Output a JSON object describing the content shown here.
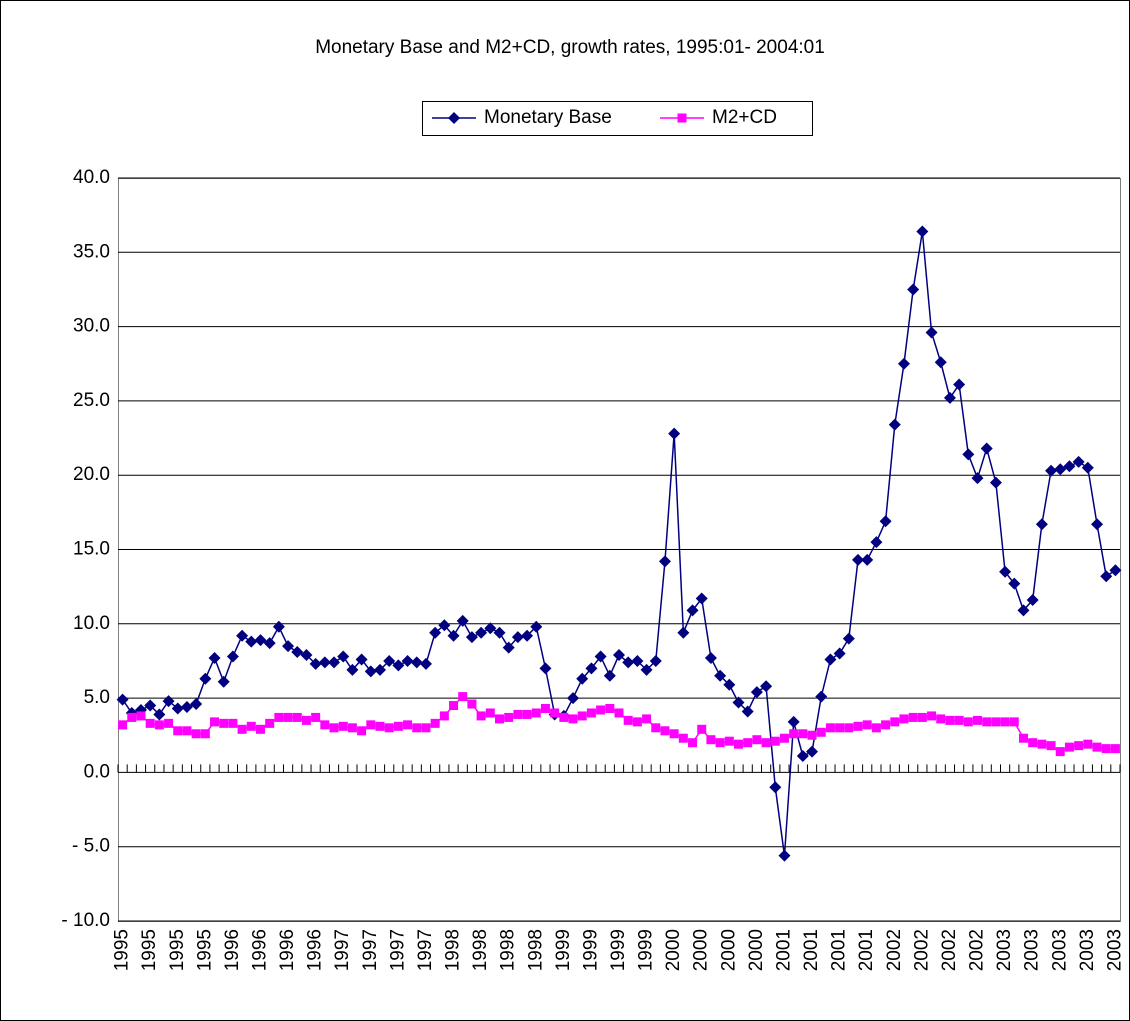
{
  "chart_data": {
    "type": "line",
    "title": "Monetary Base and M2+CD, growth rates, 1995:01- 2004:01",
    "categories": [
      "1995",
      null,
      null,
      "1995",
      null,
      null,
      "1995",
      null,
      null,
      "1995",
      null,
      null,
      "1996",
      null,
      null,
      "1996",
      null,
      null,
      "1996",
      null,
      null,
      "1996",
      null,
      null,
      "1997",
      null,
      null,
      "1997",
      null,
      null,
      "1997",
      null,
      null,
      "1997",
      null,
      null,
      "1998",
      null,
      null,
      "1998",
      null,
      null,
      "1998",
      null,
      null,
      "1998",
      null,
      null,
      "1999",
      null,
      null,
      "1999",
      null,
      null,
      "1999",
      null,
      null,
      "1999",
      null,
      null,
      "2000",
      null,
      null,
      "2000",
      null,
      null,
      "2000",
      null,
      null,
      "2000",
      null,
      null,
      "2001",
      null,
      null,
      "2001",
      null,
      null,
      "2001",
      null,
      null,
      "2001",
      null,
      null,
      "2002",
      null,
      null,
      "2002",
      null,
      null,
      "2002",
      null,
      null,
      "2002",
      null,
      null,
      "2003",
      null,
      null,
      "2003",
      null,
      null,
      "2003",
      null,
      null,
      "2003",
      null,
      null,
      "2003"
    ],
    "series": [
      {
        "name": "Monetary Base",
        "color": "#000080",
        "marker": "diamond",
        "values": [
          4.9,
          4.0,
          4.2,
          4.5,
          3.9,
          4.8,
          4.3,
          4.4,
          4.6,
          6.3,
          7.7,
          6.1,
          7.8,
          9.2,
          8.8,
          8.9,
          8.7,
          9.8,
          8.5,
          8.1,
          7.9,
          7.3,
          7.4,
          7.4,
          7.8,
          6.9,
          7.6,
          6.8,
          6.9,
          7.5,
          7.2,
          7.5,
          7.4,
          7.3,
          9.4,
          9.9,
          9.2,
          10.2,
          9.1,
          9.4,
          9.7,
          9.4,
          8.4,
          9.1,
          9.2,
          9.8,
          7.0,
          3.9,
          3.8,
          5.0,
          6.3,
          7.0,
          7.8,
          6.5,
          7.9,
          7.4,
          7.5,
          6.9,
          7.5,
          14.2,
          22.8,
          9.4,
          10.9,
          11.7,
          7.7,
          6.5,
          5.9,
          4.7,
          4.1,
          5.4,
          5.8,
          -1.0,
          -5.6,
          3.4,
          1.1,
          1.4,
          5.1,
          7.6,
          8.0,
          9.0,
          14.3,
          14.3,
          15.5,
          16.9,
          23.4,
          27.5,
          32.5,
          36.4,
          29.6,
          27.6,
          25.2,
          26.1,
          21.4,
          19.8,
          21.8,
          19.5,
          13.5,
          12.7,
          10.9,
          11.6,
          16.7,
          20.3,
          20.4,
          20.6,
          20.9,
          20.5,
          16.7,
          13.2,
          13.6
        ]
      },
      {
        "name": "M2+CD",
        "color": "#ff00ff",
        "marker": "square",
        "values": [
          3.2,
          3.7,
          3.8,
          3.3,
          3.2,
          3.3,
          2.8,
          2.8,
          2.6,
          2.6,
          3.4,
          3.3,
          3.3,
          2.9,
          3.1,
          2.9,
          3.3,
          3.7,
          3.7,
          3.7,
          3.5,
          3.7,
          3.2,
          3.0,
          3.1,
          3.0,
          2.8,
          3.2,
          3.1,
          3.0,
          3.1,
          3.2,
          3.0,
          3.0,
          3.3,
          3.8,
          4.5,
          5.1,
          4.6,
          3.8,
          4.0,
          3.6,
          3.7,
          3.9,
          3.9,
          4.0,
          4.3,
          4.0,
          3.7,
          3.6,
          3.8,
          4.0,
          4.2,
          4.3,
          4.0,
          3.5,
          3.4,
          3.6,
          3.0,
          2.8,
          2.6,
          2.3,
          2.0,
          2.9,
          2.2,
          2.0,
          2.1,
          1.9,
          2.0,
          2.2,
          2.0,
          2.1,
          2.3,
          2.6,
          2.6,
          2.5,
          2.7,
          3.0,
          3.0,
          3.0,
          3.1,
          3.2,
          3.0,
          3.2,
          3.4,
          3.6,
          3.7,
          3.7,
          3.8,
          3.6,
          3.5,
          3.5,
          3.4,
          3.5,
          3.4,
          3.4,
          3.4,
          3.4,
          2.3,
          2.0,
          1.9,
          1.8,
          1.4,
          1.7,
          1.8,
          1.9,
          1.7,
          1.6,
          1.6
        ]
      }
    ],
    "ylim": [
      -10,
      40
    ],
    "yticks": [
      {
        "value": -10,
        "label": "- 10.0"
      },
      {
        "value": -5,
        "label": "- 5.0"
      },
      {
        "value": 0,
        "label": "0.0"
      },
      {
        "value": 5,
        "label": "5.0"
      },
      {
        "value": 10,
        "label": "10.0"
      },
      {
        "value": 15,
        "label": "15.0"
      },
      {
        "value": 20,
        "label": "20.0"
      },
      {
        "value": 25,
        "label": "25.0"
      },
      {
        "value": 30,
        "label": "30.0"
      },
      {
        "value": 35,
        "label": "35.0"
      },
      {
        "value": 40,
        "label": "40.0"
      }
    ],
    "grid": true,
    "legend": "top"
  }
}
